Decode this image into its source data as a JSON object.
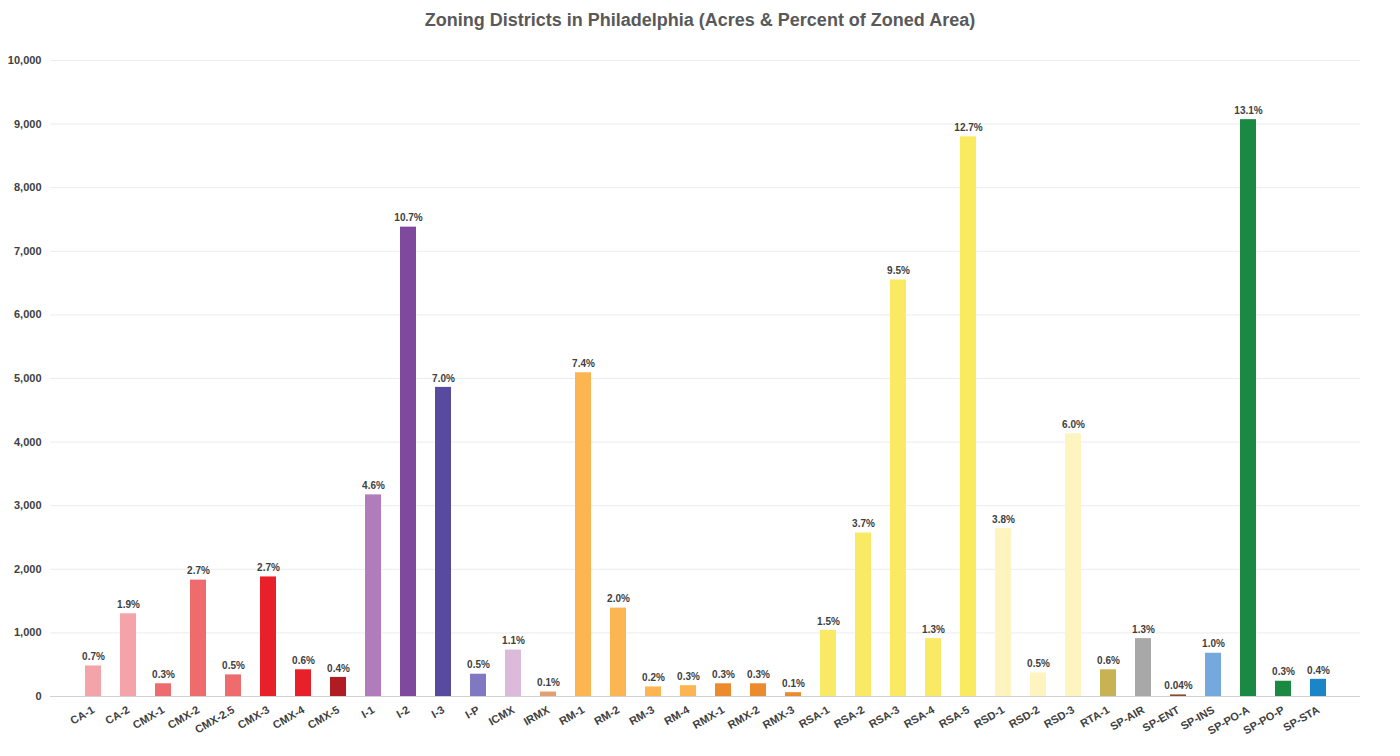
{
  "chart_data": {
    "type": "bar",
    "title": "Zoning Districts in Philadelphia (Acres & Percent of Zoned Area)",
    "categories": [
      "CA-1",
      "CA-2",
      "CMX-1",
      "CMX-2",
      "CMX-2.5",
      "CMX-3",
      "CMX-4",
      "CMX-5",
      "I-1",
      "I-2",
      "I-3",
      "I-P",
      "ICMX",
      "IRMX",
      "RM-1",
      "RM-2",
      "RM-3",
      "RM-4",
      "RMX-1",
      "RMX-2",
      "RMX-3",
      "RSA-1",
      "RSA-2",
      "RSA-3",
      "RSA-4",
      "RSA-5",
      "RSD-1",
      "RSD-2",
      "RSD-3",
      "RTA-1",
      "SP-AIR",
      "SP-ENT",
      "SP-INS",
      "SP-PO-A",
      "SP-PO-P",
      "SP-STA"
    ],
    "values": [
      480,
      1300,
      200,
      1830,
      340,
      1880,
      420,
      300,
      3170,
      7380,
      4860,
      350,
      730,
      70,
      5090,
      1390,
      150,
      170,
      200,
      200,
      60,
      1040,
      2570,
      6550,
      910,
      8800,
      2640,
      370,
      4130,
      420,
      910,
      25,
      680,
      9070,
      240,
      270
    ],
    "percent_labels": [
      "0.7%",
      "1.9%",
      "0.3%",
      "2.7%",
      "0.5%",
      "2.7%",
      "0.6%",
      "0.4%",
      "4.6%",
      "10.7%",
      "7.0%",
      "0.5%",
      "1.1%",
      "0.1%",
      "7.4%",
      "2.0%",
      "0.2%",
      "0.3%",
      "0.3%",
      "0.3%",
      "0.1%",
      "1.5%",
      "3.7%",
      "9.5%",
      "1.3%",
      "12.7%",
      "3.8%",
      "0.5%",
      "6.0%",
      "0.6%",
      "1.3%",
      "0.04%",
      "1.0%",
      "13.1%",
      "0.3%",
      "0.4%"
    ],
    "colors": [
      "#f4a3a8",
      "#f4a3a8",
      "#ee6b6e",
      "#ee6b6e",
      "#ee6b6e",
      "#e8202a",
      "#e8202a",
      "#b01c24",
      "#b07cbb",
      "#7f4a9e",
      "#584a9e",
      "#8078c0",
      "#dcbadc",
      "#e0a070",
      "#fdb552",
      "#fdb552",
      "#fdb552",
      "#fdb552",
      "#ec8a2e",
      "#ec8a2e",
      "#ec8a2e",
      "#f9e964",
      "#f9e964",
      "#f9e964",
      "#f9e964",
      "#faea60",
      "#fef4c0",
      "#fef4c0",
      "#fef4c0",
      "#c9b254",
      "#a8a8a8",
      "#8b4a2a",
      "#75a8dc",
      "#1a8a42",
      "#1a8a42",
      "#1a86c8"
    ],
    "ylim": [
      0,
      10000
    ],
    "yticks": [
      0,
      1000,
      2000,
      3000,
      4000,
      5000,
      6000,
      7000,
      8000,
      9000,
      10000
    ],
    "grid": true
  }
}
